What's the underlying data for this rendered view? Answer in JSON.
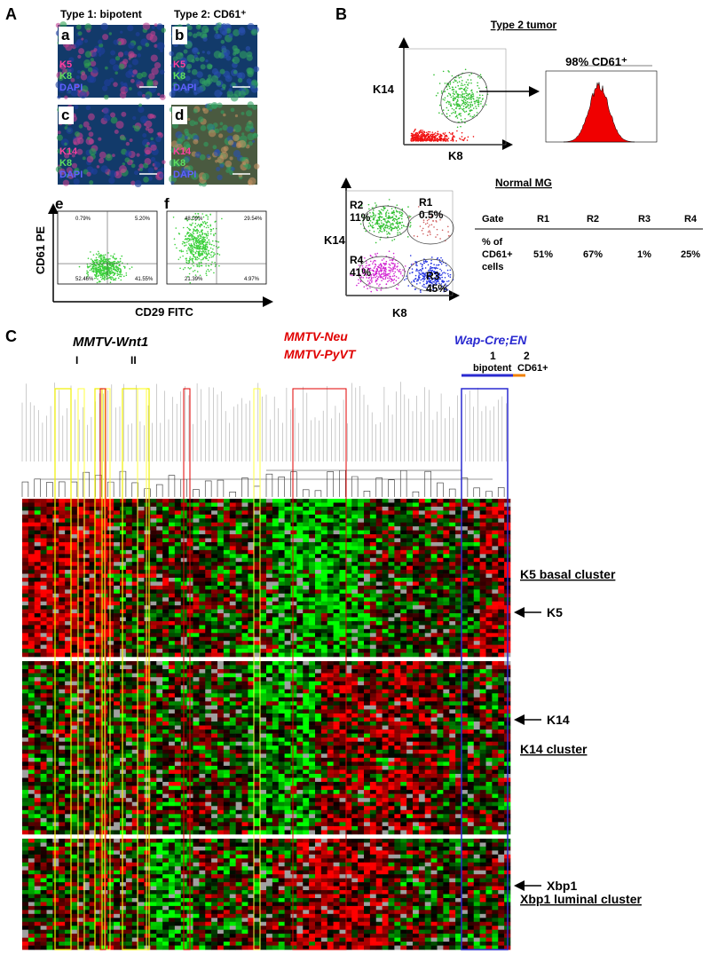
{
  "panel_a": {
    "letter": "A",
    "type1": "Type 1: bipotent",
    "type2": "Type 2: CD61⁺",
    "images": [
      {
        "letter": "a",
        "stains": [
          "K5",
          "K8",
          "DAPI"
        ]
      },
      {
        "letter": "b",
        "stains": [
          "K5",
          "K8",
          "DAPI"
        ]
      },
      {
        "letter": "c",
        "stains": [
          "K14",
          "K8",
          "DAPI"
        ]
      },
      {
        "letter": "d",
        "stains": [
          "K14",
          "K8",
          "DAPI"
        ]
      }
    ],
    "flow": [
      {
        "letter": "e",
        "quadrants": [
          "0.79%",
          "5.20%",
          "52.46%",
          "41.55%"
        ]
      },
      {
        "letter": "f",
        "quadrants": [
          "48.09%",
          "29.54%",
          "21.39%",
          "4.97%"
        ]
      }
    ],
    "y_label": "CD61 PE",
    "x_label": "CD29 FITC"
  },
  "panel_b": {
    "letter": "B",
    "tumor_title": "Type 2 tumor",
    "y_label": "K14",
    "x_label": "K8",
    "histogram_label": "98% CD61⁺",
    "normal_title": "Normal MG",
    "gates": [
      {
        "name": "R1",
        "pct": "0.5%"
      },
      {
        "name": "R2",
        "pct": "11%"
      },
      {
        "name": "R3",
        "pct": "45%"
      },
      {
        "name": "R4",
        "pct": "41%"
      }
    ],
    "table": {
      "header": [
        "Gate",
        "R1",
        "R2",
        "R3",
        "R4"
      ],
      "row_label": [
        "% of",
        "CD61+",
        "cells"
      ],
      "values": [
        "51%",
        "67%",
        "1%",
        "25%"
      ]
    }
  },
  "panel_c": {
    "letter": "C",
    "wnt1": "MMTV-Wnt1",
    "wnt1_groups": [
      "I",
      "II"
    ],
    "neu": "MMTV-Neu",
    "pyvt": "MMTV-PyVT",
    "wap": "Wap-Cre;EN",
    "wap_groups": [
      {
        "num": "1",
        "label": "bipotent"
      },
      {
        "num": "2",
        "label": "CD61+"
      }
    ],
    "k5_cluster": "K5 basal cluster",
    "k5": "K5",
    "k14": "K14",
    "k14_cluster": "K14 cluster",
    "xbp1": "Xbp1",
    "xbp1_cluster": "Xbp1 luminal cluster"
  }
}
